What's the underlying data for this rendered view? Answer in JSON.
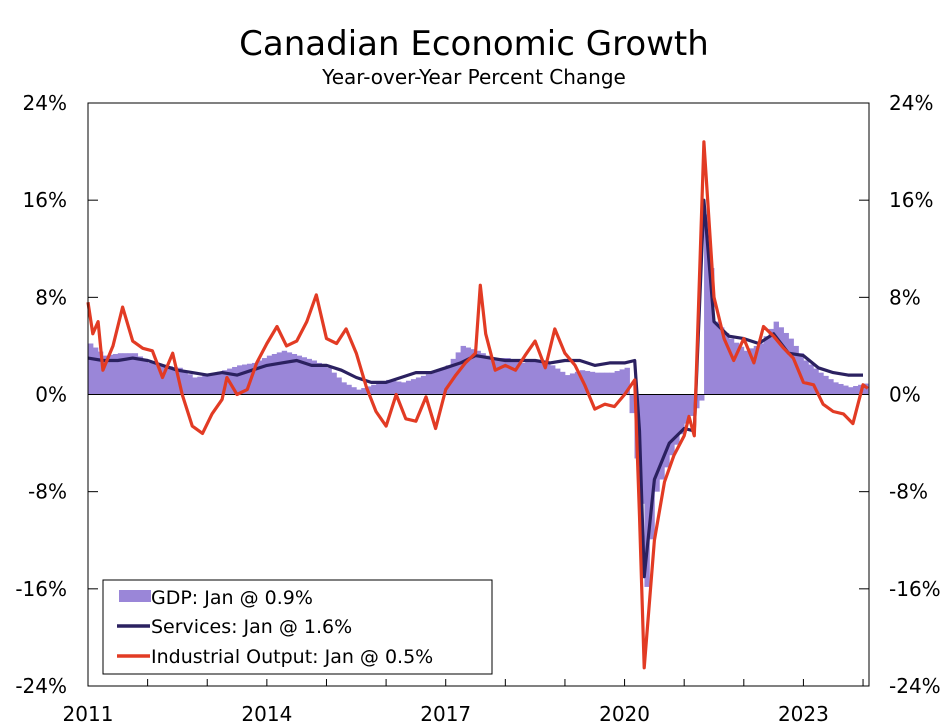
{
  "chart_data": {
    "type": "line",
    "title": "Canadian Economic Growth",
    "subtitle": "Year-over-Year Percent Change",
    "xlabel": "",
    "ylabel": "",
    "x_ticks": [
      "2011",
      "2014",
      "2017",
      "2020",
      "2023"
    ],
    "y_ticks": [
      "24%",
      "16%",
      "8%",
      "0%",
      "-8%",
      "-16%",
      "-24%"
    ],
    "ylim": [
      -24,
      24
    ],
    "xlim": [
      2011.0,
      2024.1
    ],
    "zero_line": true,
    "legend_placement": "bottom-left",
    "colors": {
      "gdp": "#9a86d8",
      "services": "#2b2160",
      "industrial": "#e23b24"
    },
    "series": [
      {
        "name": "GDP: Jan @ 0.9%",
        "type": "bar",
        "points": [
          [
            2011.0,
            4.2
          ],
          [
            2011.25,
            3.2
          ],
          [
            2011.5,
            3.4
          ],
          [
            2011.75,
            3.4
          ],
          [
            2012.0,
            2.6
          ],
          [
            2012.25,
            2.4
          ],
          [
            2012.5,
            2.2
          ],
          [
            2012.75,
            1.4
          ],
          [
            2013.0,
            1.6
          ],
          [
            2013.25,
            2.0
          ],
          [
            2013.5,
            2.4
          ],
          [
            2013.75,
            2.6
          ],
          [
            2014.0,
            3.2
          ],
          [
            2014.25,
            3.6
          ],
          [
            2014.5,
            3.2
          ],
          [
            2014.75,
            2.8
          ],
          [
            2015.0,
            2.2
          ],
          [
            2015.25,
            1.0
          ],
          [
            2015.5,
            0.4
          ],
          [
            2015.75,
            0.8
          ],
          [
            2016.0,
            1.2
          ],
          [
            2016.25,
            1.0
          ],
          [
            2016.5,
            1.4
          ],
          [
            2016.75,
            1.8
          ],
          [
            2017.0,
            2.4
          ],
          [
            2017.25,
            4.0
          ],
          [
            2017.5,
            3.6
          ],
          [
            2017.75,
            3.0
          ],
          [
            2018.0,
            3.0
          ],
          [
            2018.25,
            2.6
          ],
          [
            2018.5,
            2.8
          ],
          [
            2018.75,
            2.4
          ],
          [
            2019.0,
            1.6
          ],
          [
            2019.25,
            2.0
          ],
          [
            2019.5,
            1.8
          ],
          [
            2019.75,
            1.8
          ],
          [
            2020.0,
            2.2
          ],
          [
            2020.25,
            -9.0
          ],
          [
            2020.33,
            -16.0
          ],
          [
            2020.5,
            -8.0
          ],
          [
            2020.75,
            -5.0
          ],
          [
            2021.0,
            -2.4
          ],
          [
            2021.25,
            -0.5
          ],
          [
            2021.33,
            15.0
          ],
          [
            2021.5,
            6.0
          ],
          [
            2021.75,
            4.6
          ],
          [
            2022.0,
            3.6
          ],
          [
            2022.25,
            4.2
          ],
          [
            2022.5,
            6.0
          ],
          [
            2022.75,
            4.6
          ],
          [
            2023.0,
            2.8
          ],
          [
            2023.25,
            1.8
          ],
          [
            2023.5,
            1.0
          ],
          [
            2023.75,
            0.6
          ],
          [
            2024.0,
            0.9
          ]
        ]
      },
      {
        "name": "Services: Jan @ 1.6%",
        "type": "line",
        "points": [
          [
            2011.0,
            3.0
          ],
          [
            2011.25,
            2.8
          ],
          [
            2011.5,
            2.8
          ],
          [
            2011.75,
            3.0
          ],
          [
            2012.0,
            2.8
          ],
          [
            2012.25,
            2.4
          ],
          [
            2012.5,
            2.0
          ],
          [
            2012.75,
            1.8
          ],
          [
            2013.0,
            1.6
          ],
          [
            2013.25,
            1.8
          ],
          [
            2013.5,
            1.6
          ],
          [
            2013.75,
            2.0
          ],
          [
            2014.0,
            2.4
          ],
          [
            2014.25,
            2.6
          ],
          [
            2014.5,
            2.8
          ],
          [
            2014.75,
            2.4
          ],
          [
            2015.0,
            2.4
          ],
          [
            2015.25,
            2.0
          ],
          [
            2015.5,
            1.4
          ],
          [
            2015.75,
            1.0
          ],
          [
            2016.0,
            1.0
          ],
          [
            2016.25,
            1.4
          ],
          [
            2016.5,
            1.8
          ],
          [
            2016.75,
            1.8
          ],
          [
            2017.0,
            2.2
          ],
          [
            2017.25,
            2.6
          ],
          [
            2017.5,
            3.2
          ],
          [
            2017.75,
            3.0
          ],
          [
            2018.0,
            2.8
          ],
          [
            2018.25,
            2.8
          ],
          [
            2018.5,
            2.8
          ],
          [
            2018.75,
            2.6
          ],
          [
            2019.0,
            2.8
          ],
          [
            2019.25,
            2.8
          ],
          [
            2019.5,
            2.4
          ],
          [
            2019.75,
            2.6
          ],
          [
            2020.0,
            2.6
          ],
          [
            2020.17,
            2.8
          ],
          [
            2020.25,
            -3.0
          ],
          [
            2020.33,
            -15.0
          ],
          [
            2020.5,
            -7.0
          ],
          [
            2020.75,
            -4.0
          ],
          [
            2021.0,
            -2.8
          ],
          [
            2021.17,
            -3.0
          ],
          [
            2021.33,
            16.0
          ],
          [
            2021.5,
            6.0
          ],
          [
            2021.75,
            4.8
          ],
          [
            2022.0,
            4.6
          ],
          [
            2022.25,
            4.2
          ],
          [
            2022.5,
            5.0
          ],
          [
            2022.75,
            3.4
          ],
          [
            2023.0,
            3.2
          ],
          [
            2023.25,
            2.2
          ],
          [
            2023.5,
            1.8
          ],
          [
            2023.75,
            1.6
          ],
          [
            2024.0,
            1.6
          ]
        ]
      },
      {
        "name": "Industrial Output: Jan @ 0.5%",
        "type": "line",
        "points": [
          [
            2011.0,
            7.6
          ],
          [
            2011.08,
            5.0
          ],
          [
            2011.17,
            6.0
          ],
          [
            2011.25,
            2.0
          ],
          [
            2011.42,
            4.0
          ],
          [
            2011.58,
            7.2
          ],
          [
            2011.75,
            4.4
          ],
          [
            2011.92,
            3.8
          ],
          [
            2012.08,
            3.6
          ],
          [
            2012.25,
            1.4
          ],
          [
            2012.42,
            3.4
          ],
          [
            2012.58,
            0.0
          ],
          [
            2012.75,
            -2.6
          ],
          [
            2012.92,
            -3.2
          ],
          [
            2013.08,
            -1.6
          ],
          [
            2013.25,
            -0.4
          ],
          [
            2013.33,
            1.4
          ],
          [
            2013.5,
            0.0
          ],
          [
            2013.67,
            0.4
          ],
          [
            2013.83,
            2.6
          ],
          [
            2014.0,
            4.2
          ],
          [
            2014.17,
            5.6
          ],
          [
            2014.33,
            4.0
          ],
          [
            2014.5,
            4.4
          ],
          [
            2014.67,
            6.0
          ],
          [
            2014.83,
            8.2
          ],
          [
            2015.0,
            4.6
          ],
          [
            2015.17,
            4.2
          ],
          [
            2015.33,
            5.4
          ],
          [
            2015.5,
            3.4
          ],
          [
            2015.67,
            0.6
          ],
          [
            2015.83,
            -1.4
          ],
          [
            2016.0,
            -2.6
          ],
          [
            2016.17,
            0.0
          ],
          [
            2016.33,
            -2.0
          ],
          [
            2016.5,
            -2.2
          ],
          [
            2016.67,
            -0.2
          ],
          [
            2016.83,
            -2.8
          ],
          [
            2017.0,
            0.4
          ],
          [
            2017.17,
            1.6
          ],
          [
            2017.33,
            2.6
          ],
          [
            2017.5,
            3.4
          ],
          [
            2017.58,
            9.0
          ],
          [
            2017.67,
            5.0
          ],
          [
            2017.83,
            2.0
          ],
          [
            2018.0,
            2.4
          ],
          [
            2018.17,
            2.0
          ],
          [
            2018.33,
            3.2
          ],
          [
            2018.5,
            4.4
          ],
          [
            2018.67,
            2.2
          ],
          [
            2018.83,
            5.4
          ],
          [
            2019.0,
            3.4
          ],
          [
            2019.17,
            2.4
          ],
          [
            2019.33,
            0.8
          ],
          [
            2019.5,
            -1.2
          ],
          [
            2019.67,
            -0.8
          ],
          [
            2019.83,
            -1.0
          ],
          [
            2020.0,
            0.0
          ],
          [
            2020.17,
            1.2
          ],
          [
            2020.25,
            -10.0
          ],
          [
            2020.33,
            -22.5
          ],
          [
            2020.5,
            -12.0
          ],
          [
            2020.67,
            -7.2
          ],
          [
            2020.83,
            -5.0
          ],
          [
            2021.0,
            -3.4
          ],
          [
            2021.08,
            -1.8
          ],
          [
            2021.17,
            -3.4
          ],
          [
            2021.33,
            20.8
          ],
          [
            2021.5,
            8.0
          ],
          [
            2021.67,
            4.6
          ],
          [
            2021.83,
            2.8
          ],
          [
            2022.0,
            4.6
          ],
          [
            2022.17,
            2.6
          ],
          [
            2022.33,
            5.6
          ],
          [
            2022.5,
            4.8
          ],
          [
            2022.67,
            3.8
          ],
          [
            2022.83,
            3.0
          ],
          [
            2023.0,
            1.0
          ],
          [
            2023.17,
            0.8
          ],
          [
            2023.33,
            -0.8
          ],
          [
            2023.5,
            -1.4
          ],
          [
            2023.67,
            -1.6
          ],
          [
            2023.83,
            -2.4
          ],
          [
            2024.0,
            0.8
          ],
          [
            2024.08,
            0.5
          ]
        ]
      }
    ]
  }
}
